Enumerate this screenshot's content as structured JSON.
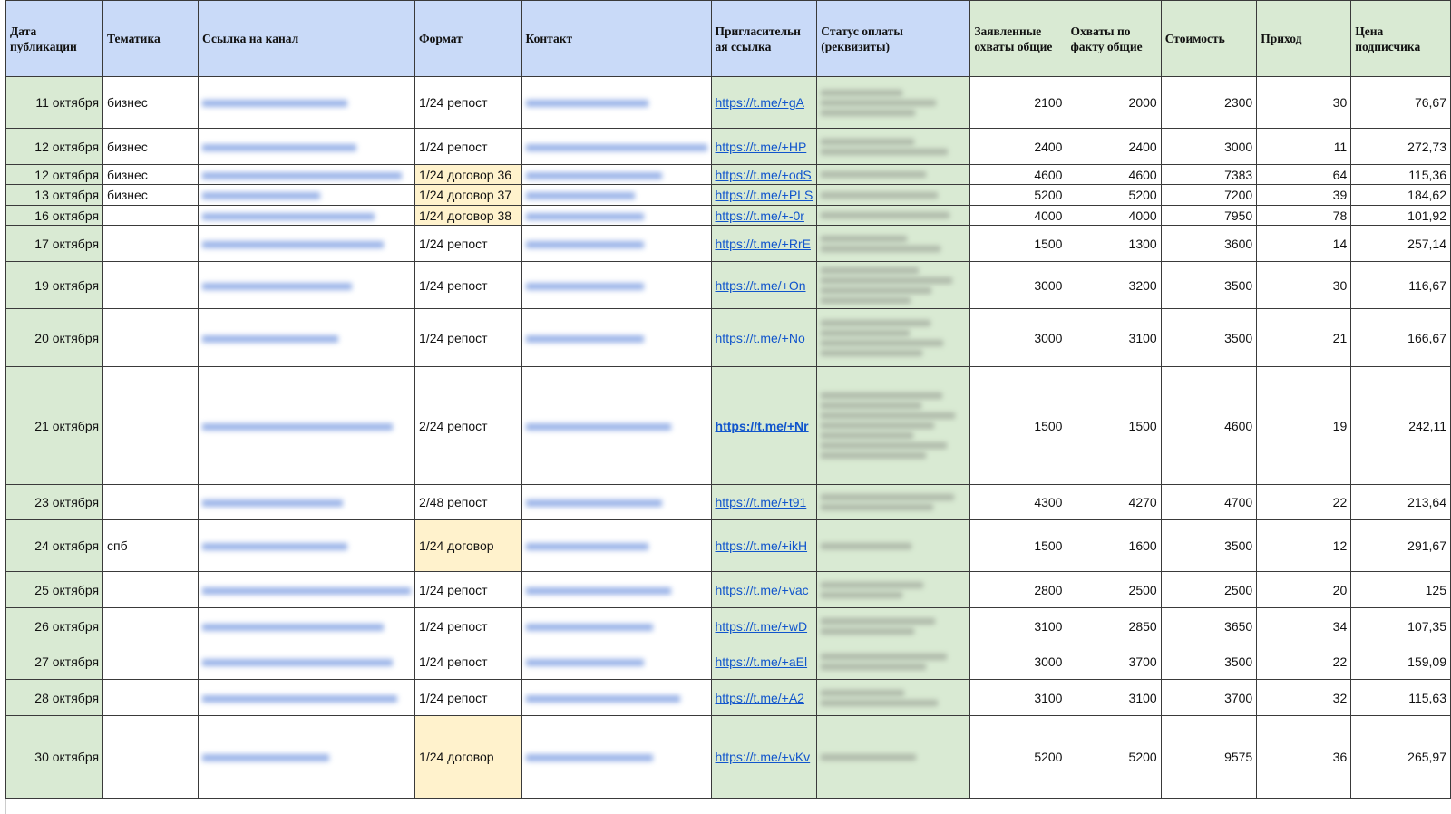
{
  "headers": [
    "Дата публикации",
    "Тематика",
    "Ссылка на канал",
    "Формат",
    "Контакт",
    "Пригласительн ая ссылка",
    "Статус оплаты (реквизиты)",
    "Заявленные охваты общие",
    "Охваты по факту общие",
    "Стоимость",
    "Приход",
    "Цена подписчика"
  ],
  "colors": {
    "header_blue": "#c9daf8",
    "header_green": "#d9ead3",
    "date_bg": "#d9ead3",
    "format_highlight": "#fff2cc",
    "link": "#1155cc"
  },
  "rows": [
    {
      "date": "11 октября",
      "topic": "бизнес",
      "format": "1/24 репост",
      "invite": "https://t.me/+gA",
      "declared": "2100",
      "actual": "2000",
      "cost": "2300",
      "income": "30",
      "price": "76,67"
    },
    {
      "date": "12 октября",
      "topic": "бизнес",
      "format": "1/24 репост",
      "invite": "https://t.me/+HP",
      "declared": "2400",
      "actual": "2400",
      "cost": "3000",
      "income": "11",
      "price": "272,73"
    },
    {
      "date": "12 октября",
      "topic": "бизнес",
      "format": "1/24 договор 36",
      "format_highlight": true,
      "invite": "https://t.me/+odS",
      "declared": "4600",
      "actual": "4600",
      "cost": "7383",
      "income": "64",
      "price": "115,36"
    },
    {
      "date": "13 октября",
      "topic": "бизнес",
      "format": "1/24 договор 37",
      "format_highlight": true,
      "invite": "https://t.me/+PLS",
      "declared": "5200",
      "actual": "5200",
      "cost": "7200",
      "income": "39",
      "price": "184,62"
    },
    {
      "date": "16 октября",
      "topic": "",
      "format": "1/24 договор 38",
      "format_highlight": true,
      "invite": "https://t.me/+-0r",
      "declared": "4000",
      "actual": "4000",
      "cost": "7950",
      "income": "78",
      "price": "101,92"
    },
    {
      "date": "17 октября",
      "topic": "",
      "format": "1/24 репост",
      "invite": "https://t.me/+RrE",
      "declared": "1500",
      "actual": "1300",
      "cost": "3600",
      "income": "14",
      "price": "257,14"
    },
    {
      "date": "19 октября",
      "topic": "",
      "format": "1/24 репост",
      "invite": "https://t.me/+On",
      "declared": "3000",
      "actual": "3200",
      "cost": "3500",
      "income": "30",
      "price": "116,67"
    },
    {
      "date": "20 октября",
      "topic": "",
      "format": "1/24 репост",
      "invite": "https://t.me/+No",
      "declared": "3000",
      "actual": "3100",
      "cost": "3500",
      "income": "21",
      "price": "166,67"
    },
    {
      "date": "21 октября",
      "topic": "",
      "format": "2/24 репост",
      "invite": "https://t.me/+Nr",
      "invite_bold": true,
      "declared": "1500",
      "actual": "1500",
      "cost": "4600",
      "income": "19",
      "price": "242,11"
    },
    {
      "date": "23 октября",
      "topic": "",
      "format": "2/48 репост",
      "invite": "https://t.me/+t91",
      "declared": "4300",
      "actual": "4270",
      "cost": "4700",
      "income": "22",
      "price": "213,64"
    },
    {
      "date": "24 октября",
      "topic": "спб",
      "format": "1/24 договор",
      "format_highlight": true,
      "invite": "https://t.me/+ikH",
      "declared": "1500",
      "actual": "1600",
      "cost": "3500",
      "income": "12",
      "price": "291,67"
    },
    {
      "date": "25 октября",
      "topic": "",
      "format": "1/24 репост",
      "invite": "https://t.me/+vac",
      "declared": "2800",
      "actual": "2500",
      "cost": "2500",
      "income": "20",
      "price": "125"
    },
    {
      "date": "26 октября",
      "topic": "",
      "format": "1/24 репост",
      "invite": "https://t.me/+wD",
      "declared": "3100",
      "actual": "2850",
      "cost": "3650",
      "income": "34",
      "price": "107,35"
    },
    {
      "date": "27 октября",
      "topic": "",
      "format": "1/24 репост",
      "invite": "https://t.me/+aEl",
      "declared": "3000",
      "actual": "3700",
      "cost": "3500",
      "income": "22",
      "price": "159,09"
    },
    {
      "date": "28 октября",
      "topic": "",
      "format": "1/24 репост",
      "invite": "https://t.me/+A2",
      "declared": "3100",
      "actual": "3100",
      "cost": "3700",
      "income": "32",
      "price": "115,63"
    },
    {
      "date": "30 октября",
      "topic": "",
      "format": "1/24 договор",
      "format_highlight": true,
      "invite": "https://t.me/+vKv",
      "declared": "5200",
      "actual": "5200",
      "cost": "9575",
      "income": "36",
      "price": "265,97"
    }
  ]
}
